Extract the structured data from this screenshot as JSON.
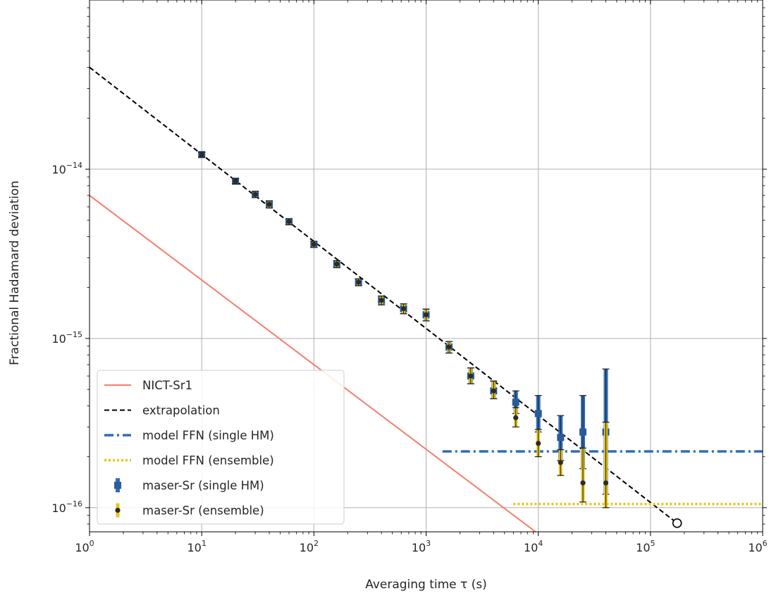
{
  "chart_data": {
    "type": "scatter",
    "xlabel": "Averaging time τ  (s)",
    "ylabel": "Fractional Hadamard deviation",
    "xscale": "log",
    "yscale": "log",
    "xlim": [
      1,
      1000000
    ],
    "ylim": [
      7.2e-17,
      1e-13
    ],
    "grid": true,
    "legend_position": "lower-left",
    "x_ticks": [
      {
        "base": "10",
        "exp": "0",
        "value": 1
      },
      {
        "base": "10",
        "exp": "1",
        "value": 10
      },
      {
        "base": "10",
        "exp": "2",
        "value": 100
      },
      {
        "base": "10",
        "exp": "3",
        "value": 1000
      },
      {
        "base": "10",
        "exp": "4",
        "value": 10000
      },
      {
        "base": "10",
        "exp": "5",
        "value": 100000
      },
      {
        "base": "10",
        "exp": "6",
        "value": 1000000
      }
    ],
    "y_ticks": [
      {
        "base": "10",
        "exp": "−14",
        "value": 1e-14
      },
      {
        "base": "10",
        "exp": "−15",
        "value": 1e-15
      },
      {
        "base": "10",
        "exp": "−16",
        "value": 1e-16
      }
    ],
    "series": [
      {
        "name": "NICT-Sr1",
        "kind": "line",
        "color": "#f47e6e",
        "style": "solid",
        "x": [
          1,
          10000
        ],
        "y": [
          7e-15,
          7e-17
        ]
      },
      {
        "name": "extrapolation",
        "kind": "line",
        "color": "#000000",
        "style": "dashed",
        "x": [
          1,
          172800
        ],
        "y": [
          4e-14,
          8.1e-17
        ]
      },
      {
        "name": "model FFN (single HM)",
        "kind": "line",
        "color": "#2f6db5",
        "style": "dashdot",
        "x": [
          1400,
          1000000
        ],
        "y": [
          2.15e-16,
          2.15e-16
        ]
      },
      {
        "name": "model FFN (ensemble)",
        "kind": "line",
        "color": "#e8c619",
        "style": "dotted",
        "x": [
          6000,
          1000000
        ],
        "y": [
          1.05e-16,
          1.05e-16
        ]
      },
      {
        "name": "maser-Sr (single HM)",
        "kind": "errorbar",
        "color": "#2f6db5",
        "marker": "square",
        "points": [
          {
            "x": 10,
            "y": 1.22e-14,
            "lo": 1.18e-14,
            "hi": 1.26e-14
          },
          {
            "x": 20,
            "y": 8.5e-15,
            "lo": 8.2e-15,
            "hi": 8.8e-15
          },
          {
            "x": 30,
            "y": 7.1e-15,
            "lo": 6.8e-15,
            "hi": 7.4e-15
          },
          {
            "x": 40,
            "y": 6.2e-15,
            "lo": 5.9e-15,
            "hi": 6.5e-15
          },
          {
            "x": 60,
            "y": 4.9e-15,
            "lo": 4.7e-15,
            "hi": 5.1e-15
          },
          {
            "x": 100,
            "y": 3.6e-15,
            "lo": 3.45e-15,
            "hi": 3.75e-15
          },
          {
            "x": 160,
            "y": 2.75e-15,
            "lo": 2.62e-15,
            "hi": 2.88e-15
          },
          {
            "x": 250,
            "y": 2.15e-15,
            "lo": 2.05e-15,
            "hi": 2.25e-15
          },
          {
            "x": 400,
            "y": 1.68e-15,
            "lo": 1.58e-15,
            "hi": 1.78e-15
          },
          {
            "x": 630,
            "y": 1.5e-15,
            "lo": 1.4e-15,
            "hi": 1.6e-15
          },
          {
            "x": 1000,
            "y": 1.38e-15,
            "lo": 1.27e-15,
            "hi": 1.49e-15
          },
          {
            "x": 1600,
            "y": 8.9e-16,
            "lo": 8.2e-16,
            "hi": 9.6e-16
          },
          {
            "x": 2500,
            "y": 6e-16,
            "lo": 5.4e-16,
            "hi": 6.7e-16
          },
          {
            "x": 4000,
            "y": 4.9e-16,
            "lo": 4.4e-16,
            "hi": 5.6e-16
          },
          {
            "x": 6300,
            "y": 4.2e-16,
            "lo": 3.6e-16,
            "hi": 4.9e-16
          },
          {
            "x": 10000,
            "y": 3.6e-16,
            "lo": 2.8e-16,
            "hi": 4.6e-16
          },
          {
            "x": 15800,
            "y": 2.6e-16,
            "lo": 1.9e-16,
            "hi": 3.5e-16
          },
          {
            "x": 25000,
            "y": 2.8e-16,
            "lo": 1.7e-16,
            "hi": 4.6e-16
          },
          {
            "x": 40000,
            "y": 2.8e-16,
            "lo": 1.2e-16,
            "hi": 6.6e-16
          }
        ]
      },
      {
        "name": "maser-Sr (ensemble)",
        "kind": "errorbar",
        "color": "#e8c619",
        "marker": "circle",
        "points": [
          {
            "x": 10,
            "y": 1.22e-14,
            "lo": 1.18e-14,
            "hi": 1.26e-14
          },
          {
            "x": 20,
            "y": 8.5e-15,
            "lo": 8.2e-15,
            "hi": 8.8e-15
          },
          {
            "x": 30,
            "y": 7.1e-15,
            "lo": 6.8e-15,
            "hi": 7.4e-15
          },
          {
            "x": 40,
            "y": 6.2e-15,
            "lo": 5.9e-15,
            "hi": 6.5e-15
          },
          {
            "x": 60,
            "y": 4.9e-15,
            "lo": 4.7e-15,
            "hi": 5.1e-15
          },
          {
            "x": 100,
            "y": 3.6e-15,
            "lo": 3.45e-15,
            "hi": 3.75e-15
          },
          {
            "x": 160,
            "y": 2.75e-15,
            "lo": 2.62e-15,
            "hi": 2.88e-15
          },
          {
            "x": 250,
            "y": 2.15e-15,
            "lo": 2.05e-15,
            "hi": 2.25e-15
          },
          {
            "x": 400,
            "y": 1.68e-15,
            "lo": 1.58e-15,
            "hi": 1.78e-15
          },
          {
            "x": 630,
            "y": 1.5e-15,
            "lo": 1.4e-15,
            "hi": 1.6e-15
          },
          {
            "x": 1000,
            "y": 1.38e-15,
            "lo": 1.27e-15,
            "hi": 1.49e-15
          },
          {
            "x": 1600,
            "y": 8.9e-16,
            "lo": 8.2e-16,
            "hi": 9.6e-16
          },
          {
            "x": 2500,
            "y": 6e-16,
            "lo": 5.4e-16,
            "hi": 6.7e-16
          },
          {
            "x": 4000,
            "y": 4.9e-16,
            "lo": 4.4e-16,
            "hi": 5.6e-16
          },
          {
            "x": 6300,
            "y": 3.4e-16,
            "lo": 3e-16,
            "hi": 3.9e-16
          },
          {
            "x": 10000,
            "y": 2.4e-16,
            "lo": 2e-16,
            "hi": 2.9e-16
          },
          {
            "x": 15800,
            "y": 1.85e-16,
            "lo": 1.55e-16,
            "hi": 2.2e-16
          },
          {
            "x": 25000,
            "y": 1.4e-16,
            "lo": 1.08e-16,
            "hi": 2.25e-16
          },
          {
            "x": 40000,
            "y": 1.4e-16,
            "lo": 1e-16,
            "hi": 3.2e-16
          }
        ]
      },
      {
        "name": "",
        "kind": "marker",
        "color": "#000000",
        "marker": "open-circle",
        "x": [
          172800
        ],
        "y": [
          8.1e-17
        ]
      }
    ],
    "legend": [
      {
        "label": "NICT-Sr1",
        "symbol": "solid-line",
        "color": "#f47e6e"
      },
      {
        "label": "extrapolation",
        "symbol": "dashed-line",
        "color": "#000000"
      },
      {
        "label": "model FFN (single HM)",
        "symbol": "dashdot-line",
        "color": "#2f6db5"
      },
      {
        "label": "model FFN (ensemble)",
        "symbol": "dotted-line",
        "color": "#e8c619"
      },
      {
        "label": "maser-Sr (single HM)",
        "symbol": "square-errorbar",
        "color": "#2f6db5"
      },
      {
        "label": "maser-Sr (ensemble)",
        "symbol": "circle-errorbar",
        "color": "#e8c619"
      }
    ]
  }
}
